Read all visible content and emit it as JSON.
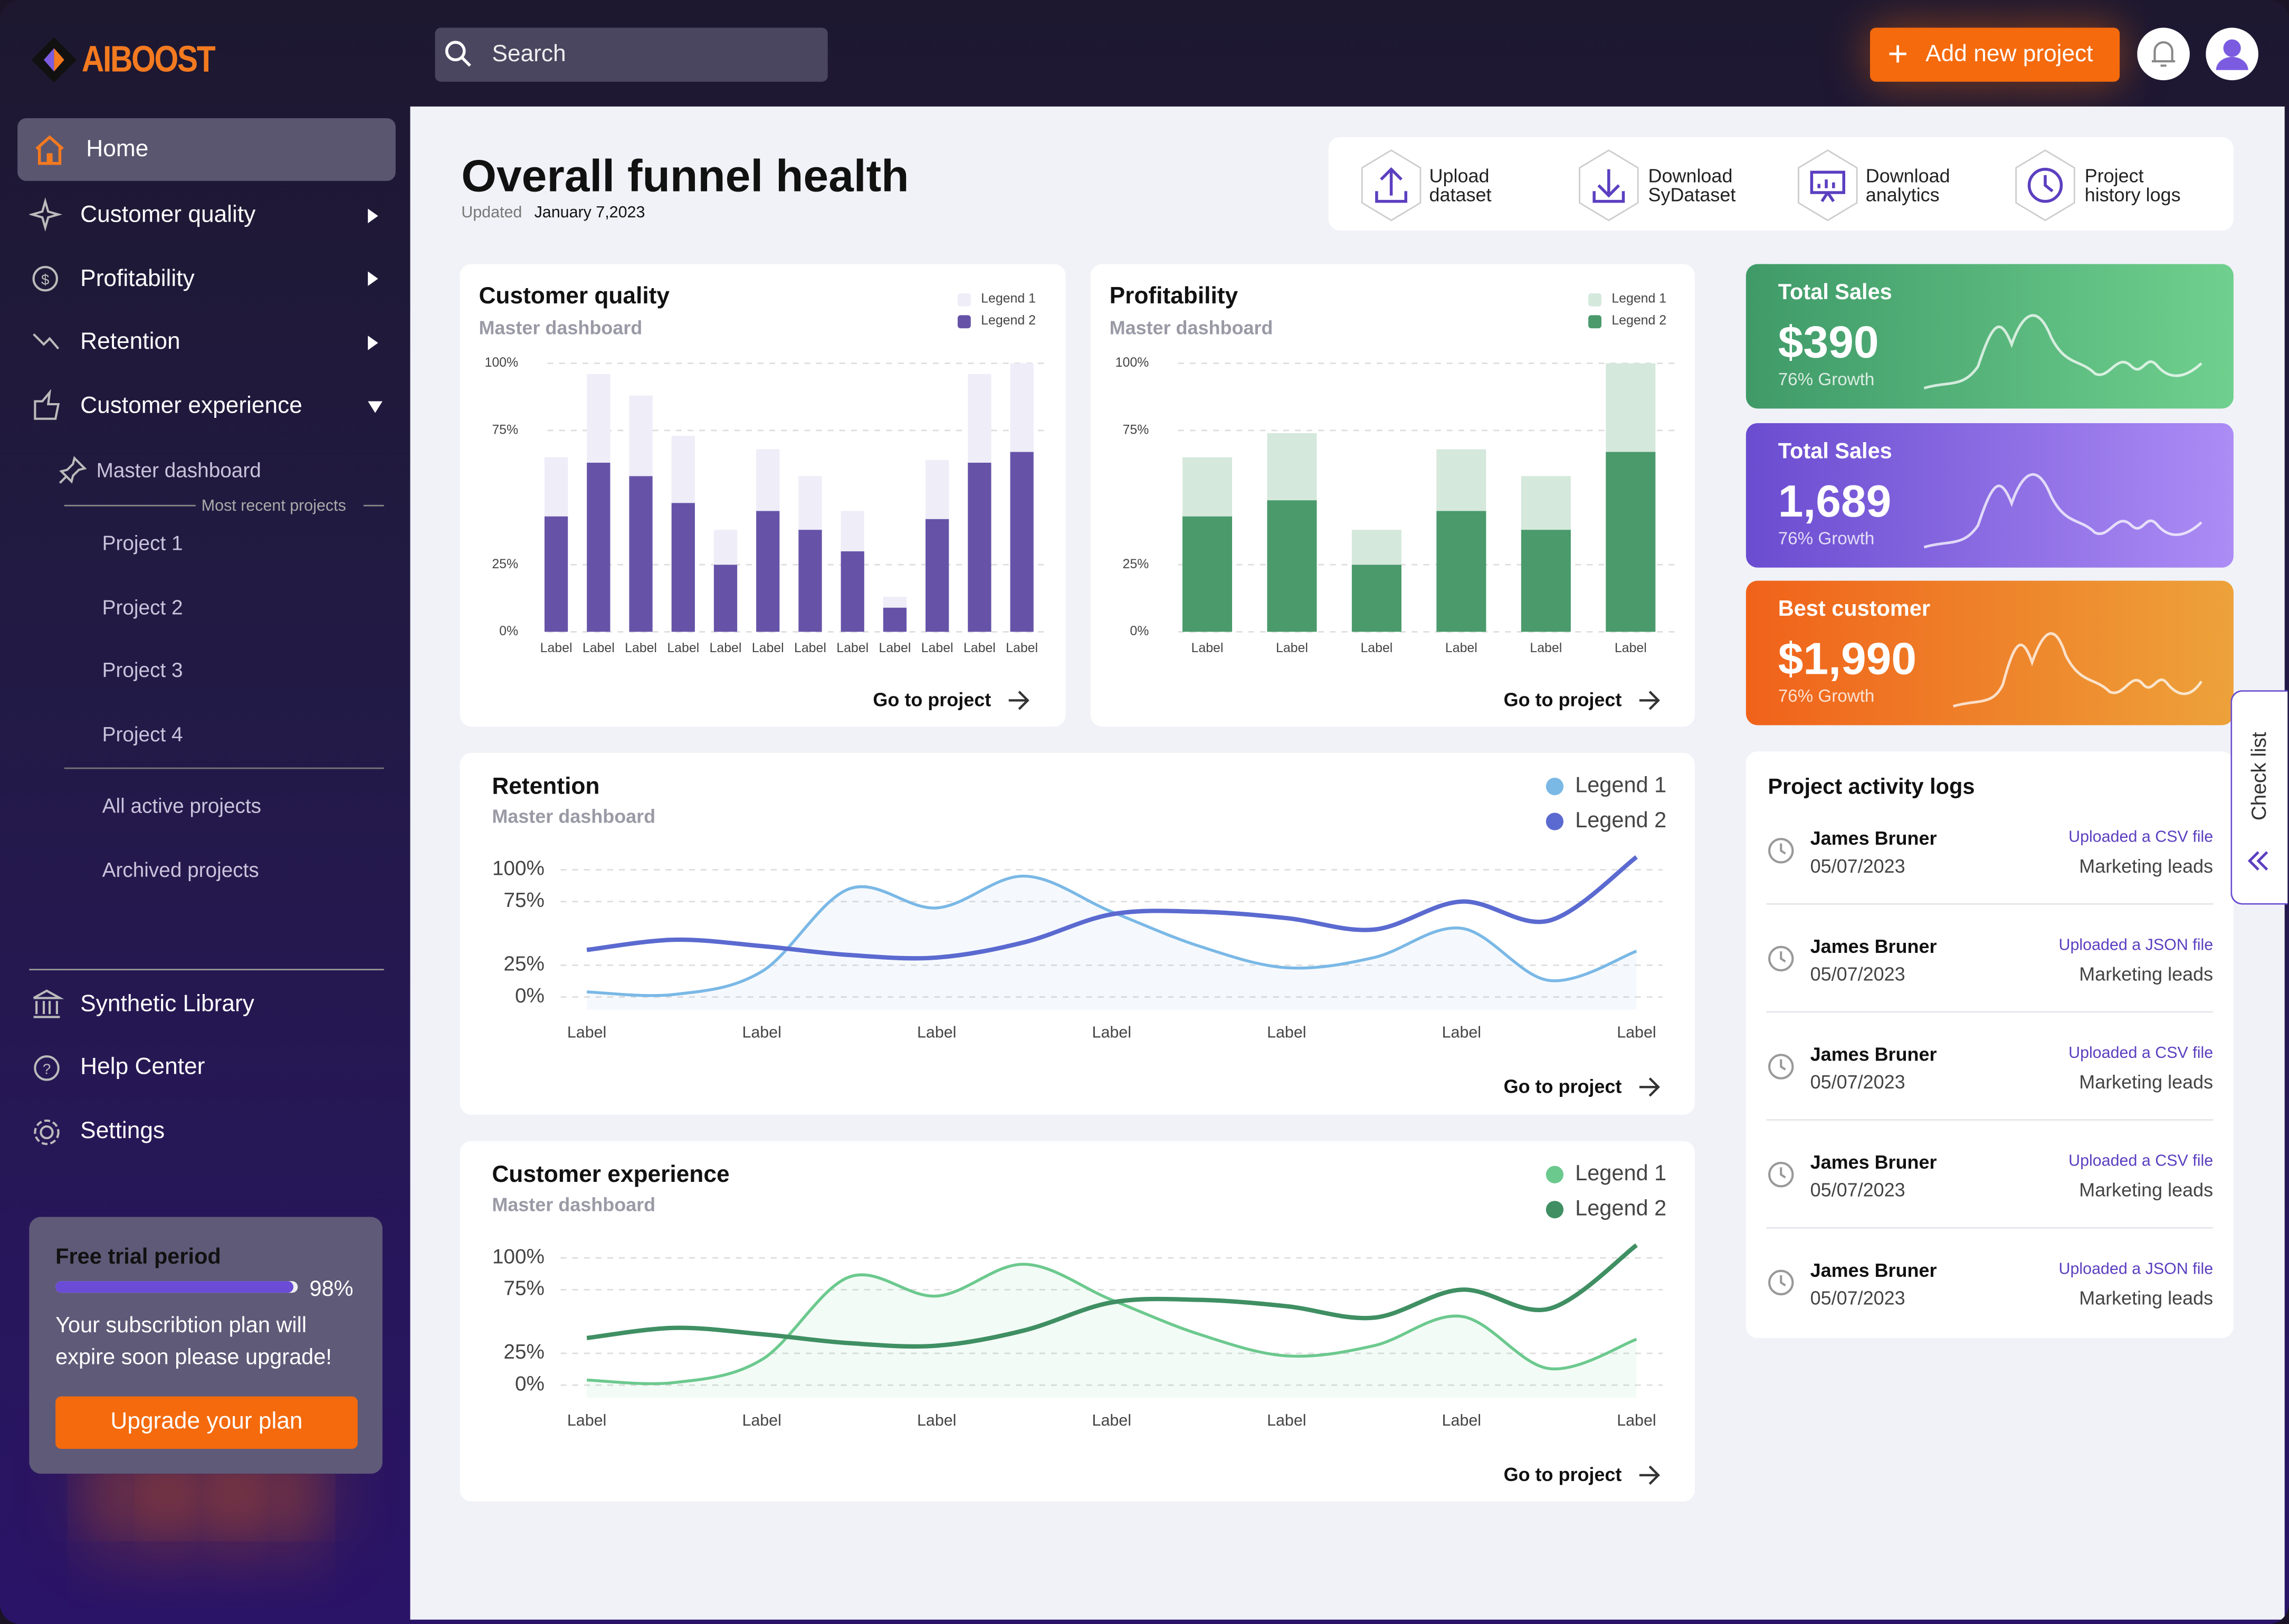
{
  "sidebar": {
    "logo": "AIBOOST",
    "items": [
      "Home",
      "Customer quality",
      "Profitability",
      "Retention",
      "Customer experience"
    ],
    "sub_item": "Master dashboard",
    "recent_label": "Most recent projects",
    "projects": [
      "Project 1",
      "Project 2",
      "Project 3",
      "Project 4"
    ],
    "more": [
      "All active projects",
      "Archived projects"
    ],
    "bottom": [
      "Synthetic Library",
      "Help Center",
      "Settings"
    ],
    "trial": {
      "title": "Free trial period",
      "progress": {
        "value": 98,
        "label": "98%"
      },
      "message": "Your subscribtion plan will expire soon please upgrade!",
      "button": "Upgrade your plan"
    }
  },
  "header": {
    "search": "Search",
    "add": "Add new project"
  },
  "page": {
    "title": "Overall funnel health",
    "updated_label": "Updated",
    "updated_date": "January 7,2023",
    "actions": [
      "Upload dataset",
      "Download SyDataset",
      "Download analytics",
      "Project history logs"
    ]
  },
  "charts": [
    {
      "type": "bar",
      "title": "Customer quality",
      "subtitle": "Master dashboard",
      "link": "Go to project",
      "categories": [
        "Label",
        "Label",
        "Label",
        "Label",
        "Label",
        "Label",
        "Label",
        "Label",
        "Label",
        "Label",
        "Label",
        "Label"
      ],
      "series": [
        {
          "name": "Legend 1",
          "color": "#eeedf8",
          "values": [
            22,
            33,
            30,
            25,
            13,
            23,
            20,
            15,
            4,
            22,
            33,
            33
          ]
        },
        {
          "name": "Legend 2",
          "color": "#6653a8",
          "values": [
            43,
            63,
            58,
            48,
            25,
            45,
            38,
            30,
            9,
            42,
            63,
            67
          ]
        }
      ],
      "ylim": [
        0,
        100
      ],
      "yticks": [
        {
          "value": 0,
          "label": "0%"
        },
        {
          "value": 25,
          "label": "25%"
        },
        {
          "value": 75,
          "label": "75%"
        },
        {
          "value": 100,
          "label": "100%"
        }
      ],
      "grid": true
    },
    {
      "type": "bar",
      "title": "Profitability",
      "subtitle": "Master dashboard",
      "link": "Go to project",
      "categories": [
        "Label",
        "Label",
        "Label",
        "Label",
        "Label",
        "Label"
      ],
      "series": [
        {
          "name": "Legend 1",
          "color": "#d5e8dc",
          "values": [
            22,
            25,
            13,
            23,
            20,
            33
          ]
        },
        {
          "name": "Legend 2",
          "color": "#4a9a6c",
          "values": [
            43,
            49,
            25,
            45,
            38,
            67
          ]
        }
      ],
      "ylim": [
        0,
        100
      ],
      "yticks": [
        {
          "value": 0,
          "label": "0%"
        },
        {
          "value": 25,
          "label": "25%"
        },
        {
          "value": 75,
          "label": "75%"
        },
        {
          "value": 100,
          "label": "100%"
        }
      ],
      "grid": true
    },
    {
      "type": "line",
      "title": "Retention",
      "subtitle": "Master dashboard",
      "link": "Go to project",
      "x": [
        0,
        0.5,
        1,
        1.5,
        2,
        2.5,
        3,
        3.5,
        4,
        4.5,
        5,
        5.5,
        6
      ],
      "series": [
        {
          "name": "Legend 1",
          "color": "#7ab8e6",
          "values": [
            4,
            2,
            20,
            85,
            70,
            95,
            67,
            40,
            23,
            31,
            54,
            13,
            36
          ]
        },
        {
          "name": "Legend 2",
          "color": "#5b6ad0",
          "values": [
            37,
            45,
            40,
            33,
            31,
            43,
            65,
            67,
            62,
            53,
            75,
            60,
            110
          ]
        }
      ],
      "xlim": [
        -0.15,
        6.15
      ],
      "xticks": [
        {
          "value": 0,
          "label": "Label"
        },
        {
          "value": 1,
          "label": "Label"
        },
        {
          "value": 2,
          "label": "Label"
        },
        {
          "value": 3,
          "label": "Label"
        },
        {
          "value": 4,
          "label": "Label"
        },
        {
          "value": 5,
          "label": "Label"
        },
        {
          "value": 6,
          "label": "Label"
        }
      ],
      "ylim": [
        -10,
        115
      ],
      "yticks": [
        {
          "value": 0,
          "label": "0%"
        },
        {
          "value": 25,
          "label": "25%"
        },
        {
          "value": 75,
          "label": "75%"
        },
        {
          "value": 100,
          "label": "100%"
        }
      ],
      "grid": true
    },
    {
      "type": "line",
      "title": "Customer experience",
      "subtitle": "Master dashboard",
      "link": "Go to project",
      "x": [
        0,
        0.5,
        1,
        1.5,
        2,
        2.5,
        3,
        3.5,
        4,
        4.5,
        5,
        5.5,
        6
      ],
      "series": [
        {
          "name": "Legend 1",
          "color": "#6cc98e",
          "values": [
            4,
            2,
            20,
            85,
            70,
            95,
            67,
            40,
            23,
            31,
            54,
            13,
            36
          ]
        },
        {
          "name": "Legend 2",
          "color": "#3f8f63",
          "values": [
            37,
            45,
            40,
            33,
            31,
            43,
            65,
            67,
            62,
            53,
            75,
            60,
            110
          ]
        }
      ],
      "xlim": [
        -0.15,
        6.15
      ],
      "xticks": [
        {
          "value": 0,
          "label": "Label"
        },
        {
          "value": 1,
          "label": "Label"
        },
        {
          "value": 2,
          "label": "Label"
        },
        {
          "value": 3,
          "label": "Label"
        },
        {
          "value": 4,
          "label": "Label"
        },
        {
          "value": 5,
          "label": "Label"
        },
        {
          "value": 6,
          "label": "Label"
        }
      ],
      "ylim": [
        -10,
        115
      ],
      "yticks": [
        {
          "value": 0,
          "label": "0%"
        },
        {
          "value": 25,
          "label": "25%"
        },
        {
          "value": 75,
          "label": "75%"
        },
        {
          "value": 100,
          "label": "100%"
        }
      ],
      "grid": true
    }
  ],
  "kpis": [
    {
      "title": "Total Sales",
      "value": "$390",
      "growth": "76% Growth"
    },
    {
      "title": "Total Sales",
      "value": "1,689",
      "growth": "76% Growth"
    },
    {
      "title": "Best customer",
      "value": "$1,990",
      "growth": "76% Growth"
    }
  ],
  "activity": {
    "title": "Project activity logs",
    "entries": [
      {
        "name": "James Bruner",
        "date": "05/07/2023",
        "action": "Uploaded a CSV file",
        "dataset": "Marketing leads"
      },
      {
        "name": "James Bruner",
        "date": "05/07/2023",
        "action": "Uploaded a JSON file",
        "dataset": "Marketing leads"
      },
      {
        "name": "James Bruner",
        "date": "05/07/2023",
        "action": "Uploaded a CSV file",
        "dataset": "Marketing leads"
      },
      {
        "name": "James Bruner",
        "date": "05/07/2023",
        "action": "Uploaded a CSV file",
        "dataset": "Marketing leads"
      },
      {
        "name": "James Bruner",
        "date": "05/07/2023",
        "action": "Uploaded a JSON file",
        "dataset": "Marketing leads"
      }
    ]
  },
  "checklist": "Check list"
}
